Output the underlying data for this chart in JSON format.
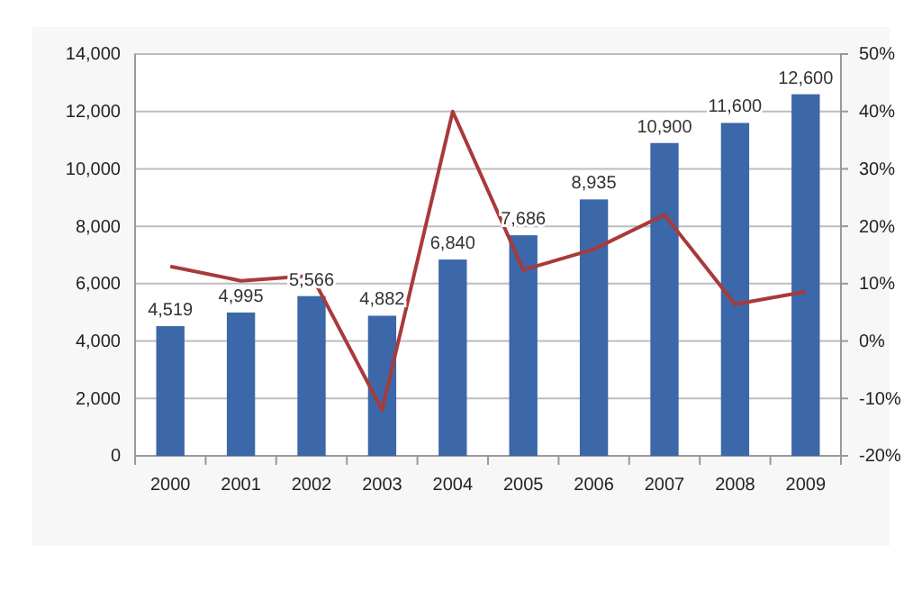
{
  "chart_data": {
    "type": "bar",
    "categories": [
      "2000",
      "2001",
      "2002",
      "2003",
      "2004",
      "2005",
      "2006",
      "2007",
      "2008",
      "2009"
    ],
    "series": [
      {
        "color": "#3c67a9",
        "values": [
          4519,
          4995,
          5566,
          4882,
          6840,
          7686,
          8935,
          10900,
          11600,
          12600
        ],
        "value_labels": [
          "4,519",
          "4,995",
          "5,566",
          "4,882",
          "6,840",
          "7,686",
          "8,935",
          "10,900",
          "11,600",
          "12,600"
        ]
      },
      {
        "type": "line",
        "axis": "y2",
        "color": "#a83a3c",
        "values": [
          13,
          10.5,
          11.4,
          -12,
          40,
          12.4,
          16,
          22,
          6.4,
          8.6
        ]
      }
    ],
    "ylim": [
      0,
      14000
    ],
    "yticks": [
      {
        "value": 0,
        "label": "0"
      },
      {
        "value": 2000,
        "label": "2,000"
      },
      {
        "value": 4000,
        "label": "4,000"
      },
      {
        "value": 6000,
        "label": "6,000"
      },
      {
        "value": 8000,
        "label": "8,000"
      },
      {
        "value": 10000,
        "label": "10,000"
      },
      {
        "value": 12000,
        "label": "12,000"
      },
      {
        "value": 14000,
        "label": "14,000"
      }
    ],
    "y2lim": [
      -20,
      50
    ],
    "y2ticks": [
      {
        "value": -20,
        "label": "-20%"
      },
      {
        "value": -10,
        "label": "-10%"
      },
      {
        "value": 0,
        "label": "0%"
      },
      {
        "value": 10,
        "label": "10%"
      },
      {
        "value": 20,
        "label": "20%"
      },
      {
        "value": 30,
        "label": "30%"
      },
      {
        "value": 40,
        "label": "40%"
      },
      {
        "value": 50,
        "label": "50%"
      }
    ],
    "grid": "y",
    "marker": "none",
    "line_style": "solid"
  }
}
